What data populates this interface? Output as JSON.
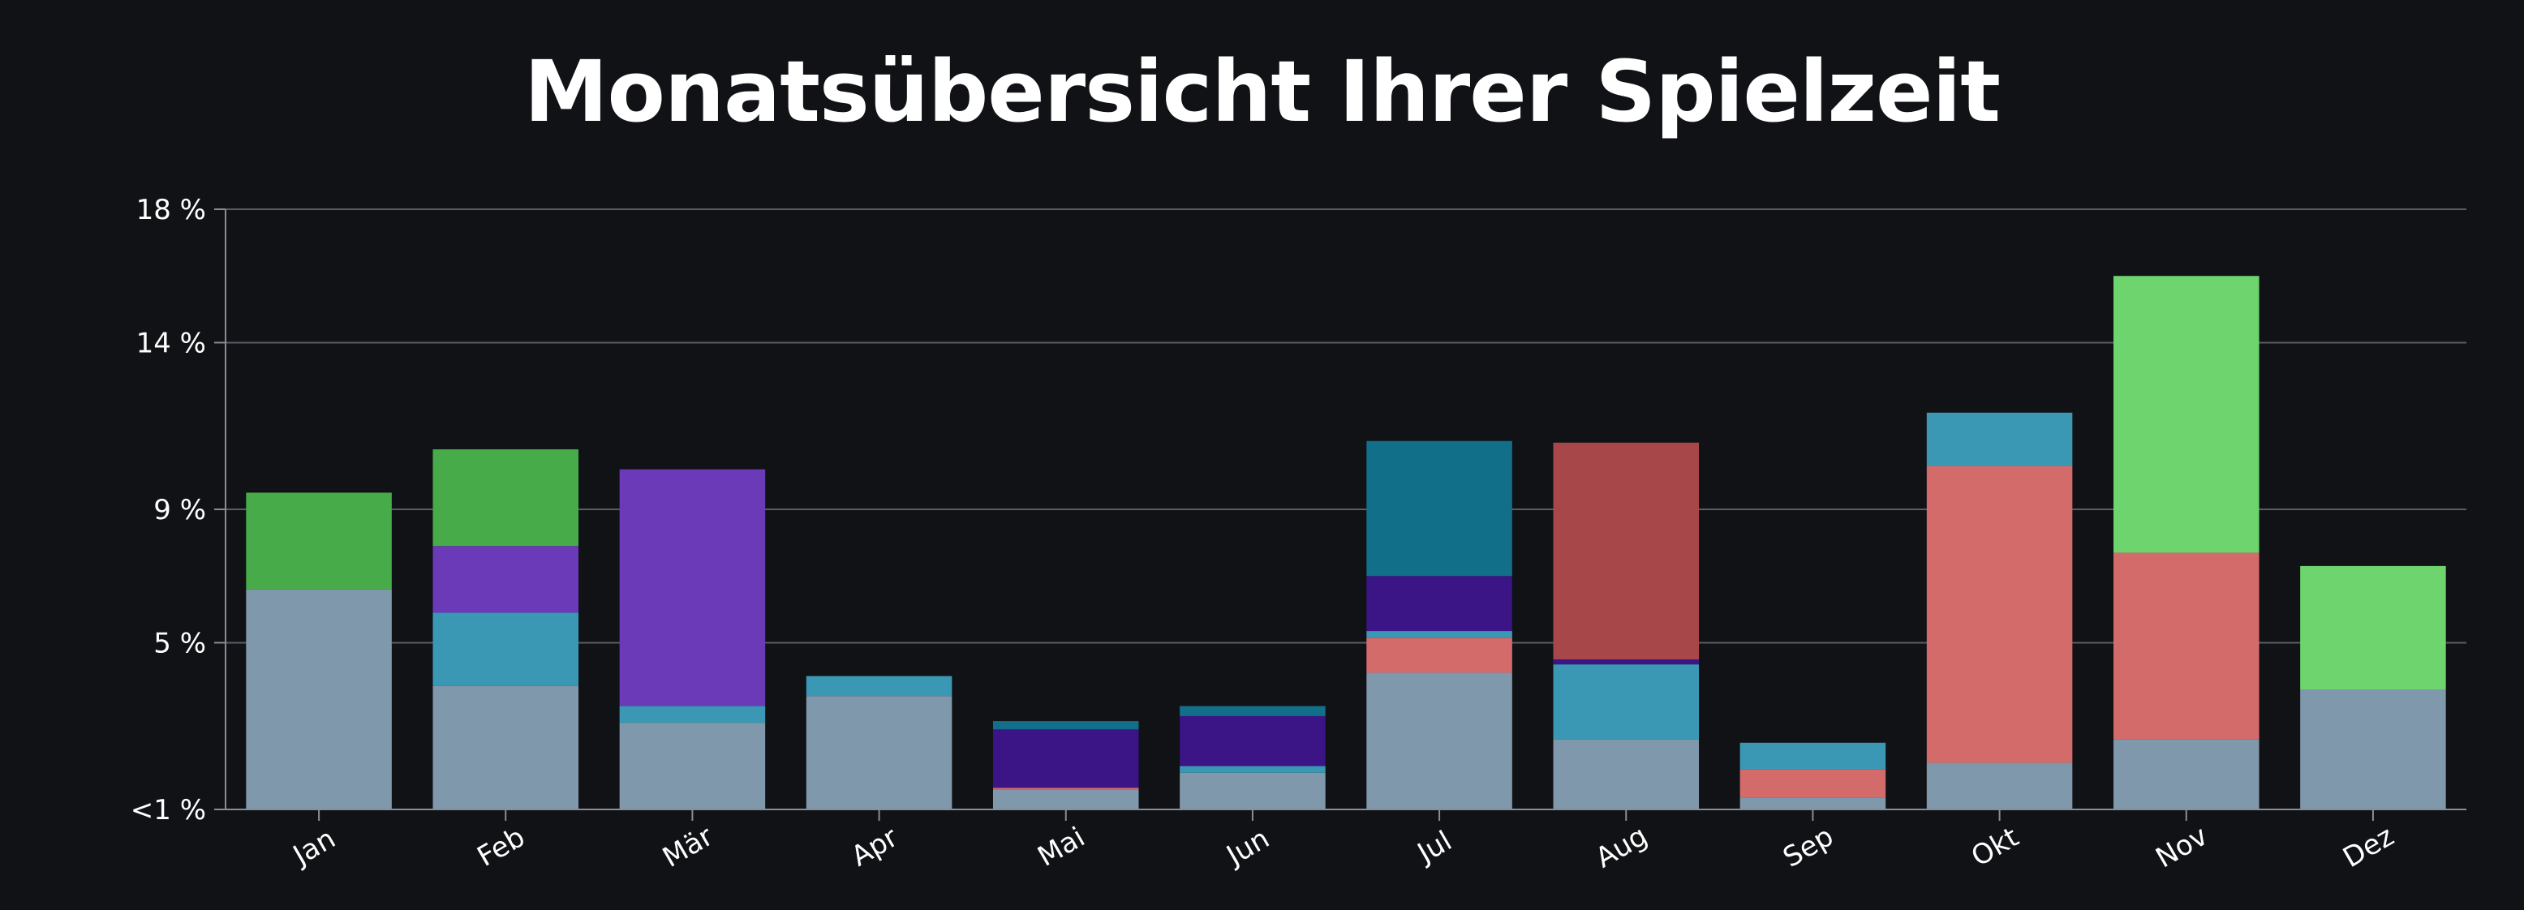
{
  "chart_data": {
    "type": "bar",
    "stacked": true,
    "title": "Monatsübersicht Ihrer Spielzeit",
    "xlabel": "",
    "ylabel": "",
    "categories": [
      "Jan",
      "Feb",
      "Mär",
      "Apr",
      "Mai",
      "Jun",
      "Jul",
      "Aug",
      "Sep",
      "Okt",
      "Nov",
      "Dez"
    ],
    "y_ticks": [
      {
        "value": 0,
        "label": "<1 %"
      },
      {
        "value": 5,
        "label": "5 %"
      },
      {
        "value": 9,
        "label": "9 %"
      },
      {
        "value": 14,
        "label": "14 %"
      },
      {
        "value": 18,
        "label": "18 %"
      }
    ],
    "ylim": [
      0,
      18
    ],
    "grid": true,
    "legend": "none",
    "series": [
      {
        "color": "#7f98ab",
        "values": [
          6.6,
          3.7,
          2.6,
          3.4,
          0.6,
          1.1,
          4.1,
          2.1,
          0.35,
          1.4,
          2.1,
          3.6
        ]
      },
      {
        "color": "#d46b6b",
        "values": [
          0,
          0,
          0,
          0,
          0.05,
          0,
          1.05,
          0,
          0.85,
          8.9,
          5.6,
          0
        ]
      },
      {
        "color": "#3b98b5",
        "values": [
          0,
          2.2,
          0.5,
          0.6,
          0,
          0.2,
          0.2,
          2.25,
          0.8,
          1.6,
          0,
          0
        ]
      },
      {
        "color": "#6a3ab8",
        "values": [
          0,
          2.0,
          7.1,
          0,
          0,
          0,
          0,
          0,
          0,
          0,
          0,
          0
        ]
      },
      {
        "color": "#3b1585",
        "values": [
          0,
          0,
          0,
          0,
          1.75,
          1.5,
          1.65,
          0.15,
          0,
          0,
          0,
          0
        ]
      },
      {
        "color": "#116f89",
        "values": [
          0,
          0,
          0,
          0,
          0.25,
          0.3,
          4.05,
          0,
          0,
          0,
          0,
          0
        ]
      },
      {
        "color": "#a8474a",
        "values": [
          0,
          0,
          0,
          0,
          0,
          0,
          0,
          6.5,
          0,
          0,
          0,
          0
        ]
      },
      {
        "color": "#46ab48",
        "values": [
          2.9,
          2.9,
          0,
          0,
          0,
          0,
          0,
          0,
          0,
          0,
          0,
          0
        ]
      },
      {
        "color": "#6dd46e",
        "values": [
          0,
          0,
          0,
          0,
          0,
          0,
          0,
          0,
          0,
          0,
          8.3,
          3.7
        ]
      }
    ]
  }
}
